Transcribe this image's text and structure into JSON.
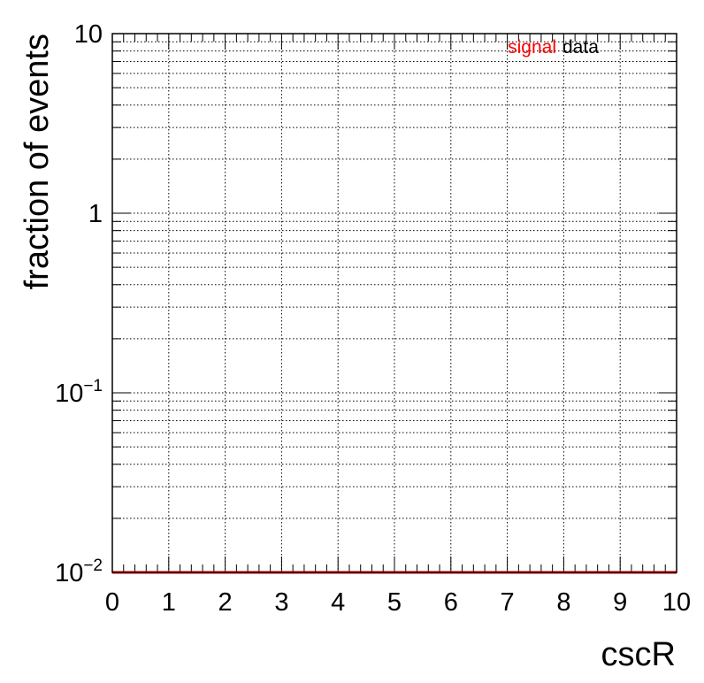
{
  "chart_data": {
    "type": "line",
    "title": "",
    "xlabel": "cscR",
    "ylabel": "fraction of events",
    "xlim": [
      0,
      10
    ],
    "ylim": [
      0.01,
      10
    ],
    "yscale": "log",
    "grid": true,
    "x_ticks": [
      {
        "value": 0,
        "label": "0"
      },
      {
        "value": 1,
        "label": "1"
      },
      {
        "value": 2,
        "label": "2"
      },
      {
        "value": 3,
        "label": "3"
      },
      {
        "value": 4,
        "label": "4"
      },
      {
        "value": 5,
        "label": "5"
      },
      {
        "value": 6,
        "label": "6"
      },
      {
        "value": 7,
        "label": "7"
      },
      {
        "value": 8,
        "label": "8"
      },
      {
        "value": 9,
        "label": "9"
      },
      {
        "value": 10,
        "label": "10"
      }
    ],
    "y_ticks": [
      {
        "value": 10,
        "base": "10",
        "exp": ""
      },
      {
        "value": 1,
        "base": "1",
        "exp": ""
      },
      {
        "value": 0.1,
        "base": "10",
        "exp": "−1"
      },
      {
        "value": 0.01,
        "base": "10",
        "exp": "−2"
      }
    ],
    "legend": {
      "placement": "top-right",
      "entries": [
        {
          "label": "signal",
          "color": "#ff0000"
        },
        {
          "label": "data",
          "color": "#000000"
        }
      ]
    },
    "series": [
      {
        "name": "signal",
        "color": "#ff0000",
        "x": [
          0,
          10
        ],
        "y": [
          0.01,
          0.01
        ]
      }
    ]
  }
}
